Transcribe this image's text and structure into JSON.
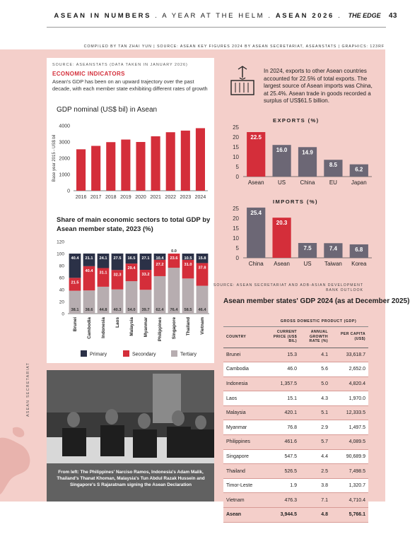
{
  "header": {
    "title": "ASEAN IN NUMBERS",
    "subtitle": "A YEAR AT THE HELM",
    "series": "ASEAN 2026",
    "publication": "THE EDGE",
    "page_number": "43"
  },
  "compiled_by": "COMPILED BY TAN ZHAI YUN | SOURCE: ASEAN KEY FIGURES 2024 BY ASEAN SECRETARIAT, ASEANSTATS | GRAPHICS: 123RF",
  "left": {
    "source": "SOURCE: ASEANSTATS (DATA TAKEN IN JANUARY 2026)",
    "section_title": "ECONOMIC INDICATORS",
    "description": "Asean's GDP has been on an upward trajectory over the past decade, with each member state exhibiting different rates of growth"
  },
  "photo": {
    "caption": "From left: The Philippines' Narciso Ramos, Indonesia's Adam Malik, Thailand's Thanat Khoman, Malaysia's Tun Abdul Razak Hussein and Singapore's S Rajaratnam signing the Asean Declaration",
    "credit": "ASEAN SECRETARIAT"
  },
  "exports_note": "In 2024, exports to other Asean countries accounted for 22.5% of total exports. The largest source of Asean imports was China, at 25.4%. Asean trade in goods recorded a surplus of US$61.5 billion.",
  "right_source": [
    "SOURCE: ASEAN SECRETARIAT AND ADB-ASIAN DEVELOPMENT",
    "BANK OUTLOOK"
  ],
  "colors": {
    "red": "#d42e3a",
    "navy": "#2b3147",
    "grey": "#b7adb0",
    "slate": "#6c6775",
    "pink": "#f4cfca"
  },
  "chart_data": [
    {
      "type": "bar",
      "title": "GDP nominal (US$ bil) in Asean",
      "ylabel": "Base year 2015 - US$ bil",
      "categories": [
        "2016",
        "2017",
        "2018",
        "2019",
        "2020",
        "2021",
        "2022",
        "2023",
        "2024"
      ],
      "values": [
        2550,
        2760,
        2990,
        3150,
        3000,
        3350,
        3600,
        3700,
        3850
      ],
      "yticks": [
        "0",
        "1000",
        "2000",
        "3000",
        "4000"
      ],
      "ylim": [
        0,
        4000
      ],
      "grid": false
    },
    {
      "type": "bar",
      "stacked": true,
      "title": "Share of main economic sectors to total GDP by Asean member state, 2023 (%)",
      "categories": [
        "Brunei",
        "Cambodia",
        "Indonesia",
        "Laos",
        "Malaysia",
        "Myanmar",
        "Philippines",
        "Singapore",
        "Thailand",
        "Vietnam"
      ],
      "series": [
        {
          "name": "Tertiary",
          "values": [
            38.1,
            38.6,
            44.8,
            40.3,
            54.0,
            39.7,
            62.4,
            76.4,
            58.5,
            46.4
          ]
        },
        {
          "name": "Secondary",
          "values": [
            21.5,
            40.4,
            31.1,
            32.3,
            29.4,
            33.2,
            27.2,
            23.6,
            31.0,
            37.8
          ]
        },
        {
          "name": "Primary",
          "values": [
            40.4,
            21.1,
            24.1,
            27.5,
            16.5,
            27.1,
            10.4,
            0.0,
            10.5,
            15.8
          ]
        }
      ],
      "yticks": [
        "0",
        "20",
        "40",
        "60",
        "80",
        "100",
        "120"
      ],
      "ylim": [
        0,
        120
      ],
      "legend": "bottom"
    },
    {
      "type": "bar",
      "title": "EXPORTS (%)",
      "categories": [
        "Asean",
        "US",
        "China",
        "EU",
        "Japan"
      ],
      "values": [
        22.5,
        16.0,
        14.9,
        8.5,
        6.2
      ],
      "labels": [
        "22.5",
        "16.0",
        "14.9",
        "8.5",
        "6.2"
      ],
      "yticks": [
        "0",
        "5",
        "10",
        "15",
        "20",
        "25"
      ],
      "ylim": [
        0,
        25
      ],
      "highlight": "Asean"
    },
    {
      "type": "bar",
      "title": "IMPORTS (%)",
      "categories": [
        "China",
        "Asean",
        "US",
        "Taiwan",
        "Korea"
      ],
      "values": [
        25.4,
        20.3,
        7.5,
        7.4,
        6.8
      ],
      "labels": [
        "25.4",
        "20.3",
        "7.5",
        "7.4",
        "6.8"
      ],
      "yticks": [
        "0",
        "5",
        "10",
        "15",
        "20",
        "25"
      ],
      "ylim": [
        0,
        25
      ],
      "highlight": "Asean"
    },
    {
      "type": "table",
      "title": "Asean member states' GDP 2024 (as at December 2025)",
      "group_header": "GROSS DOMESTIC PRODUCT (GDP)",
      "columns": [
        "COUNTRY",
        "CURRENT PRICE (US$ BIL)",
        "ANNUAL GROWTH RATE (%)",
        "PER CAPITA (US$)"
      ],
      "rows": [
        [
          "Brunei",
          "15.3",
          "4.1",
          "33,618.7"
        ],
        [
          "Cambodia",
          "46.0",
          "5.6",
          "2,652.0"
        ],
        [
          "Indonesia",
          "1,357.5",
          "5.0",
          "4,820.4"
        ],
        [
          "Laos",
          "15.1",
          "4.3",
          "1,970.0"
        ],
        [
          "Malaysia",
          "420.1",
          "5.1",
          "12,333.5"
        ],
        [
          "Myanmar",
          "76.8",
          "2.9",
          "1,497.5"
        ],
        [
          "Philippines",
          "461.6",
          "5.7",
          "4,089.5"
        ],
        [
          "Singapore",
          "547.5",
          "4.4",
          "90,689.9"
        ],
        [
          "Thailand",
          "526.5",
          "2.5",
          "7,498.5"
        ],
        [
          "Timor-Leste",
          "1.9",
          "3.8",
          "1,320.7"
        ],
        [
          "Vietnam",
          "476.3",
          "7.1",
          "4,710.4"
        ],
        [
          "Asean",
          "3,944.5",
          "4.8",
          "5,766.1"
        ]
      ]
    }
  ]
}
